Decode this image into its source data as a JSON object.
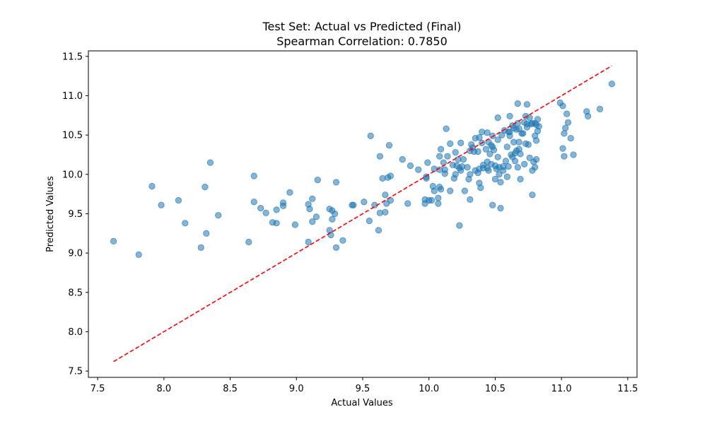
{
  "chart_data": {
    "type": "scatter",
    "title": "Test Set: Actual vs Predicted (Final)",
    "subtitle": "Spearman Correlation: 0.7850",
    "xlabel": "Actual Values",
    "ylabel": "Predicted Values",
    "xlim": [
      7.43,
      11.57
    ],
    "ylim": [
      7.42,
      11.57
    ],
    "xticks": [
      "7.5",
      "8.0",
      "8.5",
      "9.0",
      "9.5",
      "10.0",
      "10.5",
      "11.0",
      "11.5"
    ],
    "yticks": [
      "7.5",
      "8.0",
      "8.5",
      "9.0",
      "9.5",
      "10.0",
      "10.5",
      "11.0",
      "11.5"
    ],
    "grid": false,
    "point_color": "#1f77b4",
    "line_color": "#ff0000",
    "reference_line": {
      "style": "dashed",
      "x": [
        7.62,
        11.38
      ],
      "y": [
        7.62,
        11.38
      ]
    },
    "series": [
      {
        "points": [
          [
            7.62,
            9.15
          ],
          [
            7.81,
            8.98
          ],
          [
            7.91,
            9.85
          ],
          [
            7.98,
            9.61
          ],
          [
            8.11,
            9.67
          ],
          [
            8.16,
            9.38
          ],
          [
            8.28,
            9.07
          ],
          [
            8.31,
            9.84
          ],
          [
            8.32,
            9.25
          ],
          [
            8.35,
            10.15
          ],
          [
            8.41,
            9.48
          ],
          [
            8.64,
            9.14
          ],
          [
            8.68,
            9.98
          ],
          [
            8.68,
            9.65
          ],
          [
            8.73,
            9.57
          ],
          [
            8.77,
            9.51
          ],
          [
            8.82,
            9.39
          ],
          [
            8.85,
            9.38
          ],
          [
            8.85,
            9.55
          ],
          [
            8.9,
            9.6
          ],
          [
            8.9,
            9.64
          ],
          [
            8.95,
            9.77
          ],
          [
            8.99,
            9.36
          ],
          [
            9.09,
            9.14
          ],
          [
            9.09,
            9.62
          ],
          [
            9.1,
            9.56
          ],
          [
            9.12,
            9.4
          ],
          [
            9.12,
            9.69
          ],
          [
            9.15,
            9.46
          ],
          [
            9.16,
            9.93
          ],
          [
            9.25,
            9.29
          ],
          [
            9.25,
            9.56
          ],
          [
            9.26,
            9.23
          ],
          [
            9.27,
            9.54
          ],
          [
            9.27,
            9.43
          ],
          [
            9.29,
            9.5
          ],
          [
            9.3,
            9.07
          ],
          [
            9.3,
            9.9
          ],
          [
            9.35,
            9.16
          ],
          [
            9.42,
            9.61
          ],
          [
            9.43,
            9.61
          ],
          [
            9.51,
            9.65
          ],
          [
            9.55,
            9.41
          ],
          [
            9.56,
            10.49
          ],
          [
            9.59,
            9.61
          ],
          [
            9.62,
            9.29
          ],
          [
            9.63,
            9.51
          ],
          [
            9.63,
            10.23
          ],
          [
            9.65,
            9.95
          ],
          [
            9.67,
            9.74
          ],
          [
            9.67,
            9.52
          ],
          [
            9.68,
            9.63
          ],
          [
            9.69,
            9.96
          ],
          [
            9.7,
            10.37
          ],
          [
            9.71,
            9.98
          ],
          [
            9.71,
            9.67
          ],
          [
            9.8,
            10.19
          ],
          [
            9.84,
            9.63
          ],
          [
            9.86,
            10.11
          ],
          [
            9.92,
            10.06
          ],
          [
            9.97,
            9.68
          ],
          [
            9.97,
            9.63
          ],
          [
            9.98,
            9.95
          ],
          [
            9.98,
            9.97
          ],
          [
            9.99,
            10.15
          ],
          [
            10.0,
            9.67
          ],
          [
            10.02,
            9.67
          ],
          [
            10.03,
            9.85
          ],
          [
            10.04,
            10.07
          ],
          [
            10.04,
            9.79
          ],
          [
            10.07,
            9.63
          ],
          [
            10.07,
            9.7
          ],
          [
            10.08,
            9.84
          ],
          [
            10.08,
            10.06
          ],
          [
            10.08,
            10.23
          ],
          [
            10.09,
            9.81
          ],
          [
            10.09,
            10.32
          ],
          [
            10.11,
            10.15
          ],
          [
            10.12,
            10.06
          ],
          [
            10.12,
            10.01
          ],
          [
            10.13,
            10.58
          ],
          [
            10.14,
            10.23
          ],
          [
            10.16,
            9.79
          ],
          [
            10.16,
            10.39
          ],
          [
            10.18,
            10.12
          ],
          [
            10.19,
            9.95
          ],
          [
            10.2,
            10.0
          ],
          [
            10.2,
            10.28
          ],
          [
            10.21,
            10.11
          ],
          [
            10.22,
            10.19
          ],
          [
            10.23,
            10.08
          ],
          [
            10.23,
            9.35
          ],
          [
            10.24,
            10.4
          ],
          [
            10.24,
            10.05
          ],
          [
            10.25,
            10.1
          ],
          [
            10.26,
            10.19
          ],
          [
            10.27,
            9.79
          ],
          [
            10.29,
            10.09
          ],
          [
            10.3,
            9.94
          ],
          [
            10.31,
            10.0
          ],
          [
            10.31,
            10.3
          ],
          [
            10.31,
            9.68
          ],
          [
            10.32,
            10.38
          ],
          [
            10.33,
            10.34
          ],
          [
            10.34,
            10.29
          ],
          [
            10.35,
            10.05
          ],
          [
            10.35,
            10.46
          ],
          [
            10.37,
            10.02
          ],
          [
            10.37,
            10.29
          ],
          [
            10.38,
            10.47
          ],
          [
            10.38,
            9.89
          ],
          [
            10.38,
            10.07
          ],
          [
            10.39,
            9.83
          ],
          [
            10.4,
            10.54
          ],
          [
            10.4,
            10.4
          ],
          [
            10.41,
            10.12
          ],
          [
            10.41,
            10.08
          ],
          [
            10.43,
            10.32
          ],
          [
            10.44,
            10.53
          ],
          [
            10.44,
            10.16
          ],
          [
            10.44,
            10.08
          ],
          [
            10.45,
            10.05
          ],
          [
            10.45,
            10.41
          ],
          [
            10.46,
            10.26
          ],
          [
            10.47,
            10.13
          ],
          [
            10.47,
            10.37
          ],
          [
            10.48,
            10.35
          ],
          [
            10.48,
            10.49
          ],
          [
            10.48,
            9.61
          ],
          [
            10.49,
            10.31
          ],
          [
            10.5,
            10.11
          ],
          [
            10.5,
            9.94
          ],
          [
            10.51,
            10.07
          ],
          [
            10.52,
            10.44
          ],
          [
            10.52,
            10.22
          ],
          [
            10.52,
            10.72
          ],
          [
            10.53,
            10.09
          ],
          [
            10.53,
            10.0
          ],
          [
            10.54,
            9.9
          ],
          [
            10.54,
            9.57
          ],
          [
            10.55,
            10.5
          ],
          [
            10.56,
            10.1
          ],
          [
            10.56,
            10.05
          ],
          [
            10.57,
            10.56
          ],
          [
            10.58,
            10.17
          ],
          [
            10.59,
            10.35
          ],
          [
            10.59,
            9.97
          ],
          [
            10.6,
            10.1
          ],
          [
            10.6,
            10.54
          ],
          [
            10.61,
            10.49
          ],
          [
            10.61,
            10.74
          ],
          [
            10.61,
            10.54
          ],
          [
            10.62,
            10.25
          ],
          [
            10.63,
            10.62
          ],
          [
            10.63,
            10.22
          ],
          [
            10.64,
            10.59
          ],
          [
            10.64,
            10.41
          ],
          [
            10.65,
            10.17
          ],
          [
            10.65,
            10.27
          ],
          [
            10.66,
            10.57
          ],
          [
            10.66,
            10.3
          ],
          [
            10.67,
            10.09
          ],
          [
            10.67,
            10.65
          ],
          [
            10.67,
            10.9
          ],
          [
            10.68,
            10.32
          ],
          [
            10.68,
            10.41
          ],
          [
            10.68,
            10.58
          ],
          [
            10.69,
            10.26
          ],
          [
            10.69,
            9.94
          ],
          [
            10.7,
            10.52
          ],
          [
            10.71,
            10.52
          ],
          [
            10.72,
            10.66
          ],
          [
            10.72,
            10.13
          ],
          [
            10.73,
            10.39
          ],
          [
            10.73,
            10.74
          ],
          [
            10.74,
            10.64
          ],
          [
            10.74,
            10.89
          ],
          [
            10.74,
            10.6
          ],
          [
            10.75,
            10.38
          ],
          [
            10.76,
            10.72
          ],
          [
            10.76,
            10.21
          ],
          [
            10.77,
            10.64
          ],
          [
            10.78,
            10.65
          ],
          [
            10.78,
            10.05
          ],
          [
            10.78,
            9.74
          ],
          [
            10.79,
            10.16
          ],
          [
            10.8,
            10.65
          ],
          [
            10.8,
            10.49
          ],
          [
            10.8,
            10.09
          ],
          [
            10.81,
            10.19
          ],
          [
            10.81,
            10.63
          ],
          [
            10.81,
            10.43
          ],
          [
            10.82,
            10.7
          ],
          [
            10.82,
            10.55
          ],
          [
            10.83,
            10.61
          ],
          [
            10.99,
            10.91
          ],
          [
            11.01,
            10.87
          ],
          [
            11.01,
            10.33
          ],
          [
            11.02,
            10.23
          ],
          [
            11.02,
            10.52
          ],
          [
            11.03,
            10.59
          ],
          [
            11.04,
            10.77
          ],
          [
            11.05,
            10.66
          ],
          [
            11.07,
            10.46
          ],
          [
            11.09,
            10.25
          ],
          [
            11.19,
            10.8
          ],
          [
            11.2,
            10.74
          ],
          [
            11.29,
            10.83
          ],
          [
            11.38,
            11.15
          ]
        ]
      }
    ]
  }
}
